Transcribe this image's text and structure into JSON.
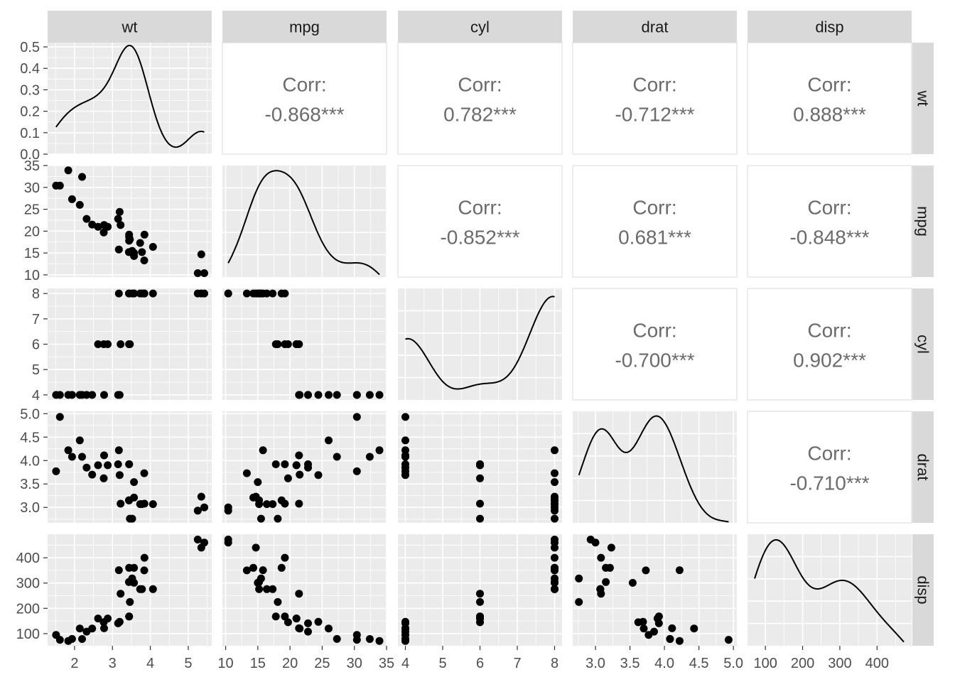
{
  "chart_data": {
    "type": "scatter",
    "title": "",
    "variables": [
      "wt",
      "mpg",
      "cyl",
      "drat",
      "disp"
    ],
    "colors": {
      "panel_background": "#ebebeb",
      "grid": "#ffffff",
      "strip_background": "#d9d9d9",
      "points": "#000000",
      "correlation_text": "#6b6b6b"
    },
    "axes": {
      "wt": {
        "lim": [
          1.29,
          5.62
        ],
        "ticks": [
          2,
          3,
          4,
          5
        ],
        "labels": [
          "2",
          "3",
          "4",
          "5"
        ]
      },
      "mpg": {
        "lim": [
          9.5,
          35.0
        ],
        "ticks": [
          10,
          15,
          20,
          25,
          30,
          35
        ],
        "labels": [
          "10",
          "15",
          "20",
          "25",
          "30",
          "35"
        ]
      },
      "cyl": {
        "lim": [
          3.8,
          8.2
        ],
        "ticks": [
          4,
          5,
          6,
          7,
          8
        ],
        "labels": [
          "4",
          "5",
          "6",
          "7",
          "8"
        ]
      },
      "drat": {
        "lim": [
          2.67,
          5.05
        ],
        "ticks": [
          3.0,
          3.5,
          4.0,
          4.5,
          5.0
        ],
        "labels": [
          "3.0",
          "3.5",
          "4.0",
          "4.5",
          "5.0"
        ]
      },
      "disp": {
        "lim": [
          52,
          493
        ],
        "ticks": [
          100,
          200,
          300,
          400
        ],
        "labels": [
          "100",
          "200",
          "300",
          "400"
        ]
      }
    },
    "density_axis": {
      "lim": [
        0,
        0.52
      ],
      "ticks": [
        0.0,
        0.1,
        0.2,
        0.3,
        0.4,
        0.5
      ],
      "labels": [
        "0.0",
        "0.1",
        "0.2",
        "0.3",
        "0.4",
        "0.5"
      ]
    },
    "correlations": [
      {
        "row": "wt",
        "col": "mpg",
        "label": "Corr:",
        "value": "-0.868***"
      },
      {
        "row": "wt",
        "col": "cyl",
        "label": "Corr:",
        "value": "0.782***"
      },
      {
        "row": "wt",
        "col": "drat",
        "label": "Corr:",
        "value": "-0.712***"
      },
      {
        "row": "wt",
        "col": "disp",
        "label": "Corr:",
        "value": "0.888***"
      },
      {
        "row": "mpg",
        "col": "cyl",
        "label": "Corr:",
        "value": "-0.852***"
      },
      {
        "row": "mpg",
        "col": "drat",
        "label": "Corr:",
        "value": "0.681***"
      },
      {
        "row": "mpg",
        "col": "disp",
        "label": "Corr:",
        "value": "-0.848***"
      },
      {
        "row": "cyl",
        "col": "drat",
        "label": "Corr:",
        "value": "-0.700***"
      },
      {
        "row": "cyl",
        "col": "disp",
        "label": "Corr:",
        "value": "0.902***"
      },
      {
        "row": "drat",
        "col": "disp",
        "label": "Corr:",
        "value": "-0.710***"
      }
    ],
    "observations": [
      {
        "wt": 2.62,
        "mpg": 21.0,
        "cyl": 6,
        "drat": 3.9,
        "disp": 160.0
      },
      {
        "wt": 2.875,
        "mpg": 21.0,
        "cyl": 6,
        "drat": 3.9,
        "disp": 160.0
      },
      {
        "wt": 2.32,
        "mpg": 22.8,
        "cyl": 4,
        "drat": 3.85,
        "disp": 108.0
      },
      {
        "wt": 3.215,
        "mpg": 21.4,
        "cyl": 6,
        "drat": 3.08,
        "disp": 258.0
      },
      {
        "wt": 3.44,
        "mpg": 18.7,
        "cyl": 8,
        "drat": 3.15,
        "disp": 360.0
      },
      {
        "wt": 3.46,
        "mpg": 18.1,
        "cyl": 6,
        "drat": 2.76,
        "disp": 225.0
      },
      {
        "wt": 3.57,
        "mpg": 14.3,
        "cyl": 8,
        "drat": 3.21,
        "disp": 360.0
      },
      {
        "wt": 3.19,
        "mpg": 24.4,
        "cyl": 4,
        "drat": 3.69,
        "disp": 146.7
      },
      {
        "wt": 3.15,
        "mpg": 22.8,
        "cyl": 4,
        "drat": 3.92,
        "disp": 140.8
      },
      {
        "wt": 3.44,
        "mpg": 19.2,
        "cyl": 6,
        "drat": 3.92,
        "disp": 167.6
      },
      {
        "wt": 3.44,
        "mpg": 17.8,
        "cyl": 6,
        "drat": 3.92,
        "disp": 167.6
      },
      {
        "wt": 4.07,
        "mpg": 16.4,
        "cyl": 8,
        "drat": 3.07,
        "disp": 275.8
      },
      {
        "wt": 3.73,
        "mpg": 17.3,
        "cyl": 8,
        "drat": 3.07,
        "disp": 275.8
      },
      {
        "wt": 3.78,
        "mpg": 15.2,
        "cyl": 8,
        "drat": 3.07,
        "disp": 275.8
      },
      {
        "wt": 5.25,
        "mpg": 10.4,
        "cyl": 8,
        "drat": 2.93,
        "disp": 472.0
      },
      {
        "wt": 5.424,
        "mpg": 10.4,
        "cyl": 8,
        "drat": 3.0,
        "disp": 460.0
      },
      {
        "wt": 5.345,
        "mpg": 14.7,
        "cyl": 8,
        "drat": 3.23,
        "disp": 440.0
      },
      {
        "wt": 2.2,
        "mpg": 32.4,
        "cyl": 4,
        "drat": 4.08,
        "disp": 78.7
      },
      {
        "wt": 1.615,
        "mpg": 30.4,
        "cyl": 4,
        "drat": 4.93,
        "disp": 75.7
      },
      {
        "wt": 1.835,
        "mpg": 33.9,
        "cyl": 4,
        "drat": 4.22,
        "disp": 71.1
      },
      {
        "wt": 2.465,
        "mpg": 21.5,
        "cyl": 4,
        "drat": 3.7,
        "disp": 120.1
      },
      {
        "wt": 3.52,
        "mpg": 15.5,
        "cyl": 8,
        "drat": 2.76,
        "disp": 318.0
      },
      {
        "wt": 3.435,
        "mpg": 15.2,
        "cyl": 8,
        "drat": 3.15,
        "disp": 304.0
      },
      {
        "wt": 3.84,
        "mpg": 13.3,
        "cyl": 8,
        "drat": 3.73,
        "disp": 350.0
      },
      {
        "wt": 3.845,
        "mpg": 19.2,
        "cyl": 8,
        "drat": 3.08,
        "disp": 400.0
      },
      {
        "wt": 1.935,
        "mpg": 27.3,
        "cyl": 4,
        "drat": 4.08,
        "disp": 79.0
      },
      {
        "wt": 2.14,
        "mpg": 26.0,
        "cyl": 4,
        "drat": 4.43,
        "disp": 120.3
      },
      {
        "wt": 1.513,
        "mpg": 30.4,
        "cyl": 4,
        "drat": 3.77,
        "disp": 95.1
      },
      {
        "wt": 3.17,
        "mpg": 15.8,
        "cyl": 8,
        "drat": 4.22,
        "disp": 351.0
      },
      {
        "wt": 2.77,
        "mpg": 19.7,
        "cyl": 6,
        "drat": 3.62,
        "disp": 145.0
      },
      {
        "wt": 3.57,
        "mpg": 15.0,
        "cyl": 8,
        "drat": 3.54,
        "disp": 301.0
      },
      {
        "wt": 2.78,
        "mpg": 21.4,
        "cyl": 4,
        "drat": 4.11,
        "disp": 121.0
      }
    ]
  }
}
